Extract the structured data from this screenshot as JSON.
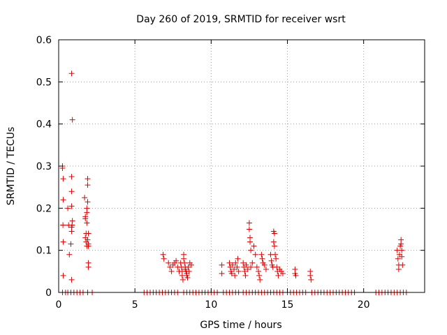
{
  "chart_data": {
    "type": "scatter",
    "title": "Day 260 of 2019, SRMTID for receiver wsrt",
    "xlabel": "GPS time / hours",
    "ylabel": "SRMTID / TECUs",
    "xlim": [
      0,
      24
    ],
    "ylim": [
      0,
      0.6
    ],
    "xticks": [
      0,
      5,
      10,
      15,
      20
    ],
    "yticks": [
      0,
      0.1,
      0.2,
      0.3,
      0.4,
      0.5,
      0.6
    ],
    "ytick_labels": [
      "0",
      "0.1",
      "0.2",
      "0.3",
      "0.4",
      "0.5",
      "0.6"
    ],
    "grid": true,
    "marker": "+",
    "series": [
      {
        "name": "SRMTID",
        "color": "#e00000",
        "points": [
          [
            0.25,
            0.3
          ],
          [
            0.25,
            0.295
          ],
          [
            0.3,
            0.27
          ],
          [
            0.3,
            0.22
          ],
          [
            0.28,
            0.16
          ],
          [
            0.3,
            0.12
          ],
          [
            0.3,
            0.04
          ],
          [
            0.25,
            0.0
          ],
          [
            0.45,
            0.0
          ],
          [
            0.6,
            0.0
          ],
          [
            0.6,
            0.2
          ],
          [
            0.65,
            0.16
          ],
          [
            0.7,
            0.09
          ],
          [
            0.85,
            0.52
          ],
          [
            0.9,
            0.41
          ],
          [
            0.85,
            0.275
          ],
          [
            0.85,
            0.24
          ],
          [
            0.85,
            0.205
          ],
          [
            0.9,
            0.17
          ],
          [
            0.88,
            0.16
          ],
          [
            0.85,
            0.155
          ],
          [
            0.85,
            0.145
          ],
          [
            0.8,
            0.115
          ],
          [
            0.85,
            0.03
          ],
          [
            0.8,
            0.0
          ],
          [
            1.0,
            0.0
          ],
          [
            1.2,
            0.0
          ],
          [
            1.4,
            0.0
          ],
          [
            1.6,
            0.0
          ],
          [
            1.7,
            0.225
          ],
          [
            1.75,
            0.18
          ],
          [
            1.75,
            0.175
          ],
          [
            1.8,
            0.14
          ],
          [
            1.75,
            0.13
          ],
          [
            1.8,
            0.12
          ],
          [
            1.85,
            0.11
          ],
          [
            1.85,
            0.2
          ],
          [
            1.85,
            0.19
          ],
          [
            1.9,
            0.27
          ],
          [
            1.9,
            0.255
          ],
          [
            1.9,
            0.215
          ],
          [
            1.85,
            0.165
          ],
          [
            1.95,
            0.14
          ],
          [
            1.9,
            0.125
          ],
          [
            1.95,
            0.115
          ],
          [
            1.95,
            0.11
          ],
          [
            1.95,
            0.07
          ],
          [
            1.95,
            0.06
          ],
          [
            1.9,
            0.0
          ],
          [
            2.2,
            0.0
          ],
          [
            5.6,
            0.0
          ],
          [
            5.8,
            0.0
          ],
          [
            6.0,
            0.0
          ],
          [
            6.2,
            0.0
          ],
          [
            6.4,
            0.0
          ],
          [
            6.6,
            0.0
          ],
          [
            6.8,
            0.0
          ],
          [
            7.0,
            0.0
          ],
          [
            7.2,
            0.0
          ],
          [
            7.4,
            0.0
          ],
          [
            7.6,
            0.0
          ],
          [
            7.8,
            0.0
          ],
          [
            6.85,
            0.09
          ],
          [
            6.9,
            0.08
          ],
          [
            7.2,
            0.07
          ],
          [
            7.3,
            0.06
          ],
          [
            7.4,
            0.05
          ],
          [
            7.5,
            0.065
          ],
          [
            7.6,
            0.07
          ],
          [
            7.7,
            0.075
          ],
          [
            7.8,
            0.06
          ],
          [
            7.9,
            0.05
          ],
          [
            8.0,
            0.07
          ],
          [
            8.05,
            0.06
          ],
          [
            8.1,
            0.05
          ],
          [
            8.1,
            0.04
          ],
          [
            8.15,
            0.03
          ],
          [
            8.2,
            0.09
          ],
          [
            8.2,
            0.08
          ],
          [
            8.25,
            0.07
          ],
          [
            8.3,
            0.06
          ],
          [
            8.3,
            0.055
          ],
          [
            8.35,
            0.05
          ],
          [
            8.4,
            0.045
          ],
          [
            8.4,
            0.04
          ],
          [
            8.45,
            0.035
          ],
          [
            8.5,
            0.06
          ],
          [
            8.55,
            0.05
          ],
          [
            8.6,
            0.07
          ],
          [
            8.7,
            0.065
          ],
          [
            8.2,
            0.0
          ],
          [
            8.4,
            0.0
          ],
          [
            8.6,
            0.0
          ],
          [
            8.8,
            0.0
          ],
          [
            9.0,
            0.0
          ],
          [
            9.2,
            0.0
          ],
          [
            9.4,
            0.0
          ],
          [
            9.6,
            0.0
          ],
          [
            9.8,
            0.0
          ],
          [
            10.0,
            0.0
          ],
          [
            10.2,
            0.0
          ],
          [
            10.4,
            0.0
          ],
          [
            10.7,
            0.065
          ],
          [
            10.7,
            0.045
          ],
          [
            10.8,
            0.0
          ],
          [
            11.0,
            0.0
          ],
          [
            11.2,
            0.07
          ],
          [
            11.25,
            0.06
          ],
          [
            11.3,
            0.05
          ],
          [
            11.35,
            0.045
          ],
          [
            11.4,
            0.065
          ],
          [
            11.5,
            0.055
          ],
          [
            11.55,
            0.04
          ],
          [
            11.6,
            0.07
          ],
          [
            11.7,
            0.06
          ],
          [
            11.75,
            0.08
          ],
          [
            11.8,
            0.05
          ],
          [
            11.2,
            0.0
          ],
          [
            11.4,
            0.0
          ],
          [
            11.6,
            0.0
          ],
          [
            11.8,
            0.0
          ],
          [
            12.1,
            0.07
          ],
          [
            12.15,
            0.06
          ],
          [
            12.2,
            0.05
          ],
          [
            12.25,
            0.04
          ],
          [
            12.3,
            0.065
          ],
          [
            12.4,
            0.055
          ],
          [
            12.5,
            0.165
          ],
          [
            12.5,
            0.15
          ],
          [
            12.55,
            0.13
          ],
          [
            12.55,
            0.12
          ],
          [
            12.6,
            0.1
          ],
          [
            12.6,
            0.06
          ],
          [
            12.7,
            0.07
          ],
          [
            12.8,
            0.11
          ],
          [
            12.9,
            0.09
          ],
          [
            12.1,
            0.0
          ],
          [
            12.3,
            0.0
          ],
          [
            12.5,
            0.0
          ],
          [
            12.7,
            0.0
          ],
          [
            12.9,
            0.0
          ],
          [
            13.0,
            0.06
          ],
          [
            13.1,
            0.05
          ],
          [
            13.15,
            0.04
          ],
          [
            13.2,
            0.03
          ],
          [
            13.3,
            0.09
          ],
          [
            13.35,
            0.08
          ],
          [
            13.4,
            0.07
          ],
          [
            13.5,
            0.065
          ],
          [
            13.6,
            0.055
          ],
          [
            13.1,
            0.0
          ],
          [
            13.3,
            0.0
          ],
          [
            13.5,
            0.0
          ],
          [
            13.7,
            0.0
          ],
          [
            13.9,
            0.09
          ],
          [
            13.95,
            0.075
          ],
          [
            14.0,
            0.065
          ],
          [
            14.05,
            0.06
          ],
          [
            14.1,
            0.145
          ],
          [
            14.15,
            0.14
          ],
          [
            14.1,
            0.12
          ],
          [
            14.15,
            0.11
          ],
          [
            14.2,
            0.09
          ],
          [
            14.25,
            0.08
          ],
          [
            14.3,
            0.06
          ],
          [
            14.35,
            0.05
          ],
          [
            14.4,
            0.04
          ],
          [
            14.5,
            0.055
          ],
          [
            14.6,
            0.05
          ],
          [
            14.7,
            0.045
          ],
          [
            13.9,
            0.0
          ],
          [
            14.1,
            0.0
          ],
          [
            14.3,
            0.0
          ],
          [
            14.5,
            0.0
          ],
          [
            14.7,
            0.0
          ],
          [
            15.0,
            0.0
          ],
          [
            15.2,
            0.0
          ],
          [
            15.4,
            0.0
          ],
          [
            15.5,
            0.055
          ],
          [
            15.5,
            0.045
          ],
          [
            15.55,
            0.04
          ],
          [
            15.6,
            0.0
          ],
          [
            15.8,
            0.0
          ],
          [
            16.0,
            0.0
          ],
          [
            16.2,
            0.0
          ],
          [
            16.5,
            0.05
          ],
          [
            16.5,
            0.04
          ],
          [
            16.55,
            0.03
          ],
          [
            16.6,
            0.0
          ],
          [
            16.8,
            0.0
          ],
          [
            17.0,
            0.0
          ],
          [
            17.2,
            0.0
          ],
          [
            17.4,
            0.0
          ],
          [
            17.6,
            0.0
          ],
          [
            17.8,
            0.0
          ],
          [
            18.0,
            0.0
          ],
          [
            18.2,
            0.0
          ],
          [
            18.4,
            0.0
          ],
          [
            18.6,
            0.0
          ],
          [
            18.8,
            0.0
          ],
          [
            19.0,
            0.0
          ],
          [
            19.2,
            0.0
          ],
          [
            19.4,
            0.0
          ],
          [
            20.8,
            0.0
          ],
          [
            21.0,
            0.0
          ],
          [
            21.2,
            0.0
          ],
          [
            21.4,
            0.0
          ],
          [
            21.6,
            0.0
          ],
          [
            21.8,
            0.0
          ],
          [
            22.0,
            0.0
          ],
          [
            22.2,
            0.0
          ],
          [
            22.4,
            0.0
          ],
          [
            22.6,
            0.0
          ],
          [
            22.8,
            0.0
          ],
          [
            22.2,
            0.1
          ],
          [
            22.25,
            0.08
          ],
          [
            22.3,
            0.065
          ],
          [
            22.3,
            0.055
          ],
          [
            22.35,
            0.09
          ],
          [
            22.4,
            0.11
          ],
          [
            22.45,
            0.125
          ],
          [
            22.45,
            0.115
          ],
          [
            22.5,
            0.1
          ],
          [
            22.5,
            0.085
          ],
          [
            22.55,
            0.065
          ]
        ]
      }
    ]
  }
}
